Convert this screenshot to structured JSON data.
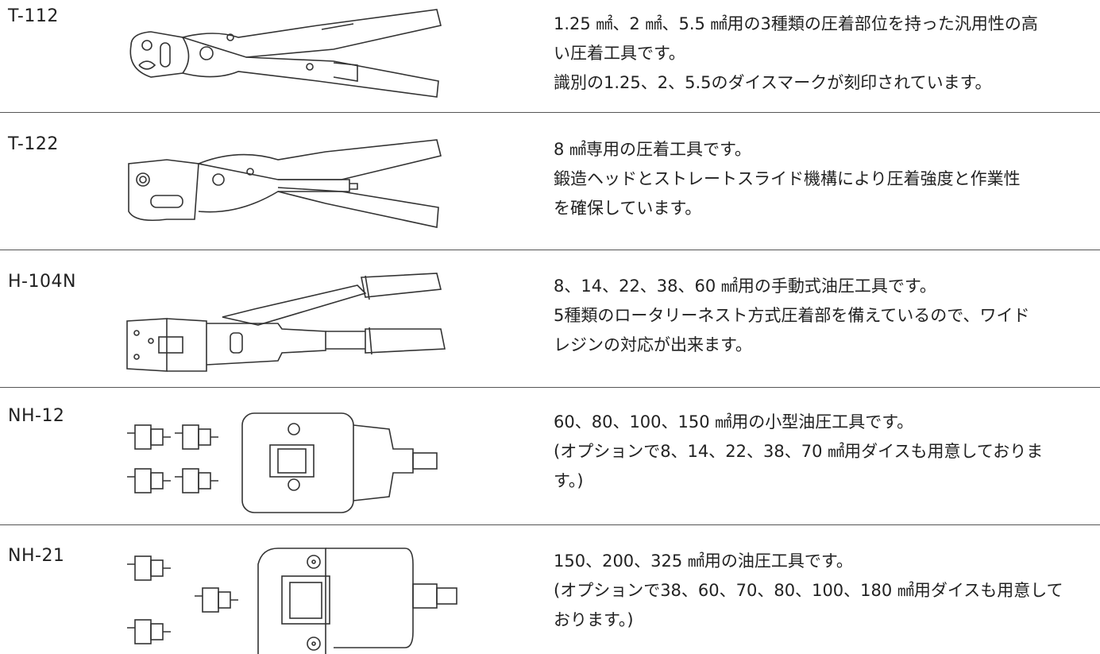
{
  "products": [
    {
      "model": "T-112",
      "lines": [
        "1.25 ㎟、2 ㎟、5.5 ㎟用の3種類の圧着部位を持った汎用性の高",
        "い圧着工具です。",
        "識別の1.25、2、5.5のダイスマークが刻印されています。"
      ]
    },
    {
      "model": "T-122",
      "lines": [
        "8 ㎟専用の圧着工具です。",
        "鍛造ヘッドとストレートスライド機構により圧着強度と作業性",
        "を確保しています。"
      ]
    },
    {
      "model": "H-104N",
      "lines": [
        "8、14、22、38、60 ㎟用の手動式油圧工具です。",
        "5種類のロータリーネスト方式圧着部を備えているので、ワイド",
        "レジンの対応が出来ます。"
      ]
    },
    {
      "model": "NH-12",
      "lines": [
        "60、80、100、150 ㎟用の小型油圧工具です。",
        "(オプションで8、14、22、38、70 ㎟用ダイスも用意しておりま",
        "す。)"
      ]
    },
    {
      "model": "NH-21",
      "lines": [
        "150、200、325 ㎟用の油圧工具です。",
        "(オプションで38、60、70、80、100、180 ㎟用ダイスも用意して",
        "おります。)"
      ]
    }
  ]
}
